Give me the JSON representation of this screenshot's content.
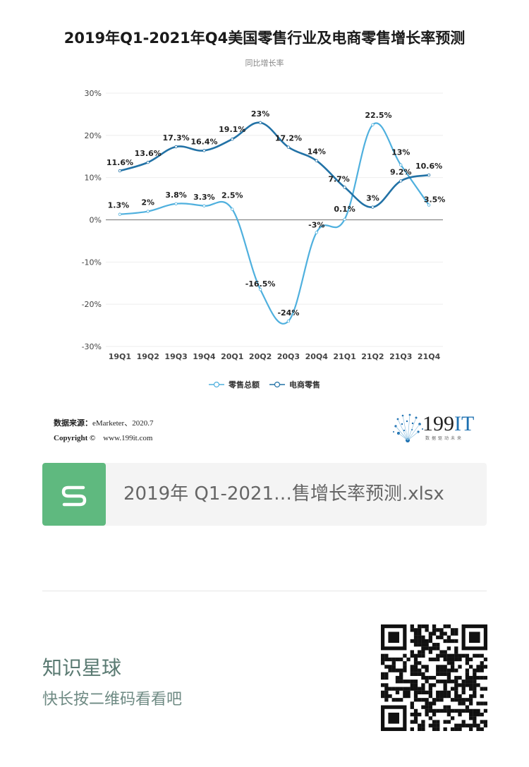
{
  "page": {
    "title": "2019年Q1-2021年Q4美国零售行业及电商零售增长率预测",
    "subtitle": "同比增长率",
    "source_label": "数据来源：",
    "source_value": "eMarketer、2020.7",
    "copyright_label": "Copyright ©",
    "copyright_value": "www.199it.com",
    "brand_number": "199",
    "brand_it": "IT",
    "brand_tagline": "数据驱动未来",
    "file_name": "2019年 Q1-2021…售增长率预测.xlsx",
    "planet_title": "知识星球",
    "planet_subtitle": "快长按二维码看看吧"
  },
  "colors": {
    "retail_total": "#4fb0de",
    "ecommerce": "#2272a6",
    "file_icon_bg": "#5fb97f",
    "grid": "#eeeeee",
    "zero_line": "#888888"
  },
  "icons": {
    "file_icon": "spreadsheet-s-icon",
    "brand_logo": "199it-dandelion-logo",
    "qr": "qr-code"
  },
  "chart_data": {
    "type": "line",
    "title": "2019年Q1-2021年Q4美国零售行业及电商零售增长率预测",
    "subtitle": "同比增长率",
    "categories": [
      "19Q1",
      "19Q2",
      "19Q3",
      "19Q4",
      "20Q1",
      "20Q2",
      "20Q3",
      "20Q4",
      "21Q1",
      "21Q2",
      "21Q3",
      "21Q4"
    ],
    "yticks": [
      "30%",
      "20%",
      "10%",
      "0%",
      "-10%",
      "-20%",
      "-30%"
    ],
    "ylim": [
      -30,
      30
    ],
    "grid": true,
    "legend_position": "bottom",
    "smooth": true,
    "series": [
      {
        "name": "零售总额",
        "color": "#4fb0de",
        "values": [
          1.3,
          2,
          3.8,
          3.3,
          2.5,
          -16.5,
          -24,
          -3,
          0.1,
          22.5,
          13,
          3.5
        ],
        "labels": [
          "1.3%",
          "2%",
          "3.8%",
          "3.3%",
          "2.5%",
          "-16.5%",
          "-24%",
          "-3%",
          "0.1%",
          "22.5%",
          "13%",
          "3.5%"
        ]
      },
      {
        "name": "电商零售",
        "color": "#2272a6",
        "values": [
          11.6,
          13.6,
          17.3,
          16.4,
          19.1,
          23,
          17.2,
          14,
          7.7,
          3,
          9.2,
          10.6
        ],
        "labels": [
          "11.6%",
          "13.6%",
          "17.3%",
          "16.4%",
          "19.1%",
          "23%",
          "17.2%",
          "14%",
          "7.7%",
          "3%",
          "9.2%",
          "10.6%"
        ]
      }
    ]
  }
}
